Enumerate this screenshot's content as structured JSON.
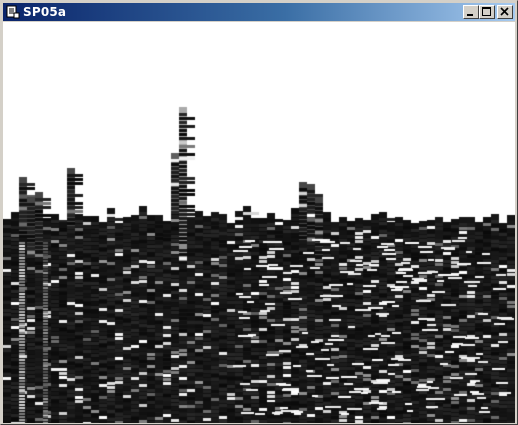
{
  "window": {
    "title": "SP05a",
    "app_icon": "program-window-icon",
    "buttons": {
      "minimize_icon": "minimize-icon",
      "maximize_icon": "maximize-icon",
      "close_icon": "close-icon"
    }
  },
  "colors": {
    "titlebar_start": "#0a246a",
    "titlebar_end": "#a6caf0",
    "frame": "#d4d0c8",
    "plot_background": "#ffffff",
    "plot_floor": "#0a0a0a",
    "highlight": "#ffffff"
  }
}
